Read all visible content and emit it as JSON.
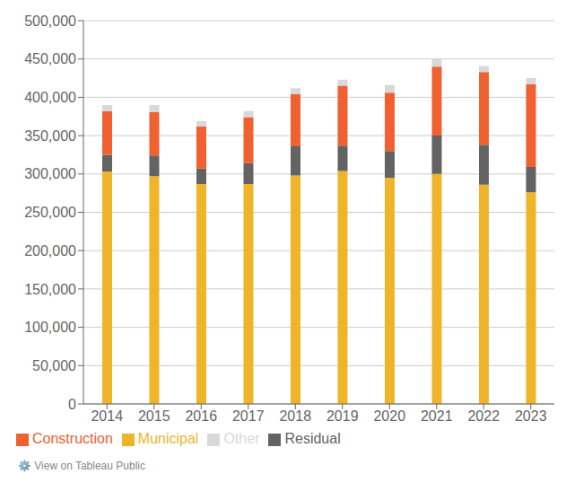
{
  "chart_data": {
    "type": "bar",
    "stacked": true,
    "grid": true,
    "legend": "bottom",
    "categories": [
      "2014",
      "2015",
      "2016",
      "2017",
      "2018",
      "2019",
      "2020",
      "2021",
      "2022",
      "2023"
    ],
    "series": [
      {
        "name": "Municipal",
        "color": "#F0B429",
        "values": [
          303000,
          297000,
          287000,
          287000,
          298000,
          304000,
          295000,
          300000,
          286000,
          276000
        ]
      },
      {
        "name": "Residual",
        "color": "#636363",
        "values": [
          22000,
          27000,
          20000,
          27000,
          38000,
          33000,
          35000,
          50000,
          52000,
          33000
        ]
      },
      {
        "name": "Construction",
        "color": "#F06030",
        "values": [
          57000,
          57000,
          55000,
          60000,
          68000,
          78000,
          76000,
          90000,
          95000,
          108000
        ]
      },
      {
        "name": "Other",
        "color": "#D8D8D8",
        "values": [
          8000,
          9000,
          7000,
          8000,
          8000,
          8000,
          10000,
          10000,
          8000,
          8000
        ]
      }
    ],
    "ylim": [
      0,
      500000
    ],
    "yticks": [
      0,
      {
        "value": 50000,
        "label": "50,000"
      },
      {
        "value": 100000,
        "label": "100,000"
      },
      {
        "value": 150000,
        "label": "150,000"
      },
      {
        "value": 200000,
        "label": "200,000"
      },
      {
        "value": 250000,
        "label": "250,000"
      },
      {
        "value": 300000,
        "label": "300,000"
      },
      {
        "value": 350000,
        "label": "350,000"
      },
      {
        "value": 400000,
        "label": "400,000"
      },
      {
        "value": 450000,
        "label": "450,000"
      },
      {
        "value": 500000,
        "label": "500,000"
      }
    ],
    "annotations": [
      "⚙️  View on Tableau Public"
    ]
  }
}
